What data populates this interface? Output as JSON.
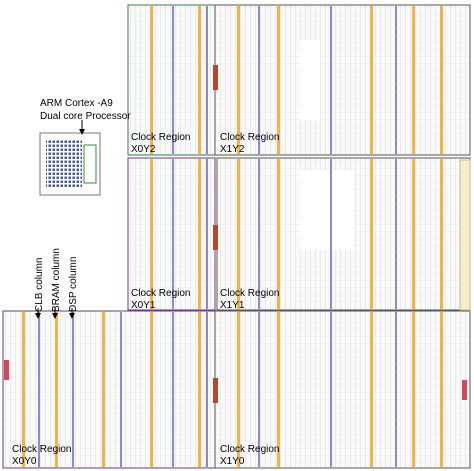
{
  "processor": {
    "line1": "ARM Cortex -A9",
    "line2": "Dual core Processor"
  },
  "columns": [
    "CLB column",
    "BRAM column",
    "DSP column"
  ],
  "regions": [
    {
      "title": "Clock Region",
      "name": "X0Y2"
    },
    {
      "title": "Clock Region",
      "name": "X1Y2"
    },
    {
      "title": "Clock Region",
      "name": "X0Y1"
    },
    {
      "title": "Clock Region",
      "name": "X1Y1"
    },
    {
      "title": "Clock Region",
      "name": "X0Y0"
    },
    {
      "title": "Clock Region",
      "name": "X1Y0"
    }
  ]
}
